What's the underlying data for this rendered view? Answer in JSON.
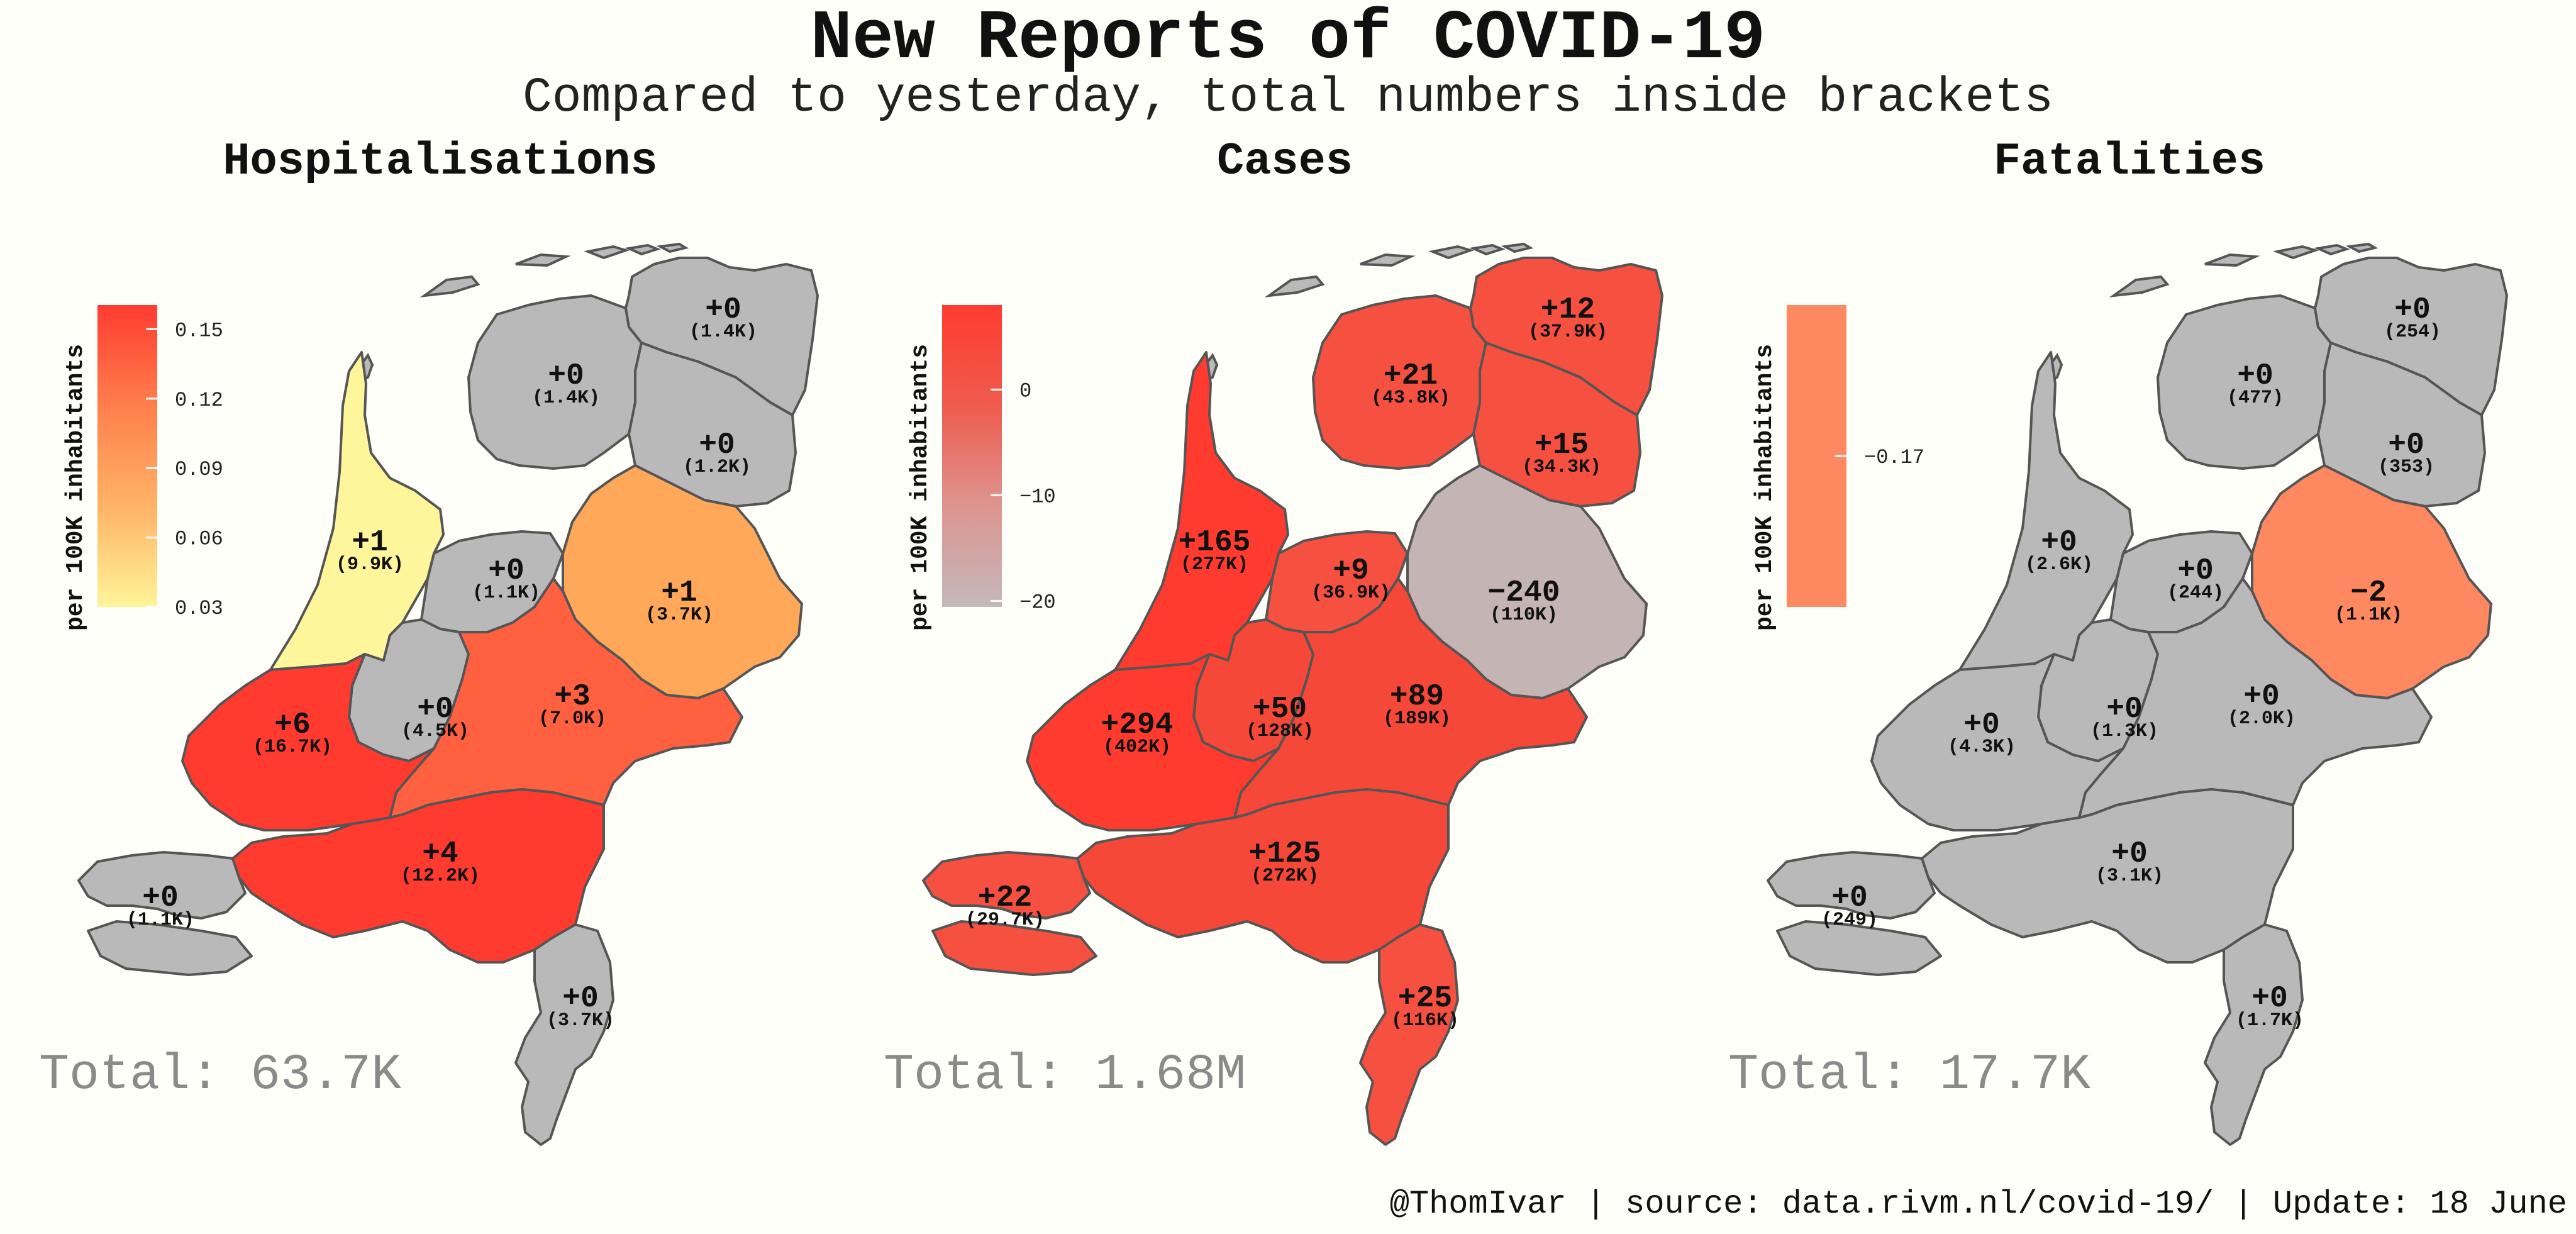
{
  "title": "New Reports of COVID-19",
  "subtitle": "Compared to yesterday, total numbers inside brackets",
  "footer": "@ThomIvar | source: data.rivm.nl/covid-19/ | Update: 18 June",
  "legend_axis_label": "per 100K inhabitants",
  "grey_color": "#b9b9b9",
  "panels": [
    {
      "title": "Hospitalisations",
      "total": "Total: 63.7K",
      "legend": {
        "ticks": [
          {
            "label": "0.15",
            "frac": 0.92
          },
          {
            "label": "0.12",
            "frac": 0.69
          },
          {
            "label": "0.09",
            "frac": 0.46
          },
          {
            "label": "0.06",
            "frac": 0.23
          },
          {
            "label": "0.03",
            "frac": 0.0
          }
        ],
        "colors": [
          "#ff3b30",
          "#ff7f4c",
          "#ffb366",
          "#fff59a"
        ]
      },
      "provinces": {
        "groningen": {
          "delta": "+0",
          "total": "(1.4K)",
          "color": "#b9b9b9"
        },
        "friesland": {
          "delta": "+0",
          "total": "(1.4K)",
          "color": "#b9b9b9"
        },
        "drenthe": {
          "delta": "+0",
          "total": "(1.2K)",
          "color": "#b9b9b9"
        },
        "noord_holland": {
          "delta": "+1",
          "total": "(9.9K)",
          "color": "#fff59a"
        },
        "flevoland": {
          "delta": "+0",
          "total": "(1.1K)",
          "color": "#b9b9b9"
        },
        "overijssel": {
          "delta": "+1",
          "total": "(3.7K)",
          "color": "#ffa85a"
        },
        "utrecht": {
          "delta": "+0",
          "total": "(4.5K)",
          "color": "#b9b9b9"
        },
        "gelderland": {
          "delta": "+3",
          "total": "(7.0K)",
          "color": "#ff6040"
        },
        "zuid_holland": {
          "delta": "+6",
          "total": "(16.7K)",
          "color": "#ff3b30"
        },
        "noord_brabant": {
          "delta": "+4",
          "total": "(12.2K)",
          "color": "#ff3b30"
        },
        "zeeland": {
          "delta": "+0",
          "total": "(1.1K)",
          "color": "#b9b9b9"
        },
        "limburg": {
          "delta": "+0",
          "total": "(3.7K)",
          "color": "#b9b9b9"
        }
      }
    },
    {
      "title": "Cases",
      "total": "Total: 1.68M",
      "legend": {
        "ticks": [
          {
            "label": "0",
            "frac": 0.72
          },
          {
            "label": "−10",
            "frac": 0.37
          },
          {
            "label": "−20",
            "frac": 0.02
          }
        ],
        "colors": [
          "#ff3b30",
          "#ef5b4e",
          "#dd9590",
          "#c4b8ba"
        ]
      },
      "provinces": {
        "groningen": {
          "delta": "+12",
          "total": "(37.9K)",
          "color": "#f65040"
        },
        "friesland": {
          "delta": "+21",
          "total": "(43.8K)",
          "color": "#f65040"
        },
        "drenthe": {
          "delta": "+15",
          "total": "(34.3K)",
          "color": "#f65040"
        },
        "noord_holland": {
          "delta": "+165",
          "total": "(277K)",
          "color": "#ff3b30"
        },
        "flevoland": {
          "delta": "+9",
          "total": "(36.9K)",
          "color": "#f65040"
        },
        "overijssel": {
          "delta": "−240",
          "total": "(110K)",
          "color": "#c4b4b4"
        },
        "utrecht": {
          "delta": "+50",
          "total": "(128K)",
          "color": "#f54838"
        },
        "gelderland": {
          "delta": "+89",
          "total": "(189K)",
          "color": "#f54838"
        },
        "zuid_holland": {
          "delta": "+294",
          "total": "(402K)",
          "color": "#ff3b30"
        },
        "noord_brabant": {
          "delta": "+125",
          "total": "(272K)",
          "color": "#f54838"
        },
        "zeeland": {
          "delta": "+22",
          "total": "(29.7K)",
          "color": "#f65040"
        },
        "limburg": {
          "delta": "+25",
          "total": "(116K)",
          "color": "#f65040"
        }
      }
    },
    {
      "title": "Fatalities",
      "total": "Total: 17.7K",
      "legend": {
        "ticks": [
          {
            "label": "−0.17",
            "frac": 0.5
          }
        ],
        "colors": [
          "#fe8860",
          "#fe8860"
        ]
      },
      "provinces": {
        "groningen": {
          "delta": "+0",
          "total": "(254)",
          "color": "#b9b9b9"
        },
        "friesland": {
          "delta": "+0",
          "total": "(477)",
          "color": "#b9b9b9"
        },
        "drenthe": {
          "delta": "+0",
          "total": "(353)",
          "color": "#b9b9b9"
        },
        "noord_holland": {
          "delta": "+0",
          "total": "(2.6K)",
          "color": "#b9b9b9"
        },
        "flevoland": {
          "delta": "+0",
          "total": "(244)",
          "color": "#b9b9b9"
        },
        "overijssel": {
          "delta": "−2",
          "total": "(1.1K)",
          "color": "#fe8860"
        },
        "utrecht": {
          "delta": "+0",
          "total": "(1.3K)",
          "color": "#b9b9b9"
        },
        "gelderland": {
          "delta": "+0",
          "total": "(2.0K)",
          "color": "#b9b9b9"
        },
        "zuid_holland": {
          "delta": "+0",
          "total": "(4.3K)",
          "color": "#b9b9b9"
        },
        "noord_brabant": {
          "delta": "+0",
          "total": "(3.1K)",
          "color": "#b9b9b9"
        },
        "zeeland": {
          "delta": "+0",
          "total": "(249)",
          "color": "#b9b9b9"
        },
        "limburg": {
          "delta": "+0",
          "total": "(1.7K)",
          "color": "#b9b9b9"
        }
      }
    }
  ]
}
